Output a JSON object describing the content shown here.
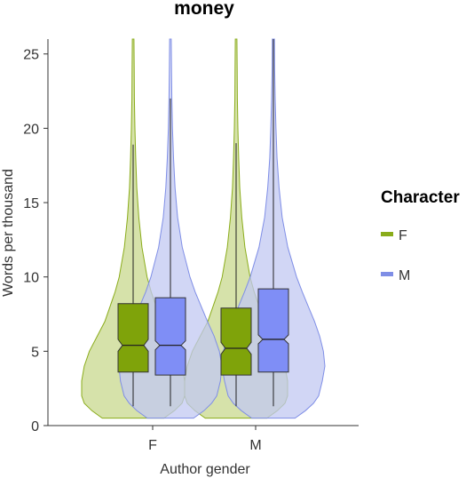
{
  "chart_data": {
    "type": "violin",
    "title": "money",
    "xlabel": "Author gender",
    "ylabel": "Words per thousand",
    "categories": [
      "F",
      "M"
    ],
    "ylim": [
      0,
      26
    ],
    "yticks": [
      "0",
      "5",
      "10",
      "15",
      "20",
      "25"
    ],
    "grid": false,
    "legend_title": "Character",
    "legend_position": "right",
    "series": [
      {
        "name": "F",
        "color": "#8aac1a",
        "fill": "#c8d88e",
        "box_fill": "#7fa30a",
        "groups": [
          {
            "category": "F",
            "min": 1.3,
            "q1": 3.6,
            "median": 5.4,
            "q3": 8.2,
            "whisker_high": 18.9,
            "notch_low": 5.0,
            "notch_high": 5.8,
            "data_min": 0.5,
            "data_max": 26,
            "profile": [
              [
                0.5,
                0.6
              ],
              [
                1,
                0.8
              ],
              [
                1.5,
                0.95
              ],
              [
                2,
                1.0
              ],
              [
                3,
                1.0
              ],
              [
                4,
                0.95
              ],
              [
                5,
                0.85
              ],
              [
                6,
                0.7
              ],
              [
                7,
                0.55
              ],
              [
                8,
                0.45
              ],
              [
                9,
                0.35
              ],
              [
                10,
                0.27
              ],
              [
                12,
                0.17
              ],
              [
                14,
                0.11
              ],
              [
                16,
                0.07
              ],
              [
                18,
                0.05
              ],
              [
                20,
                0.035
              ],
              [
                22,
                0.025
              ],
              [
                24,
                0.02
              ],
              [
                26,
                0.015
              ]
            ]
          },
          {
            "category": "M",
            "min": 1.3,
            "q1": 3.4,
            "median": 5.2,
            "q3": 7.9,
            "whisker_high": 19.0,
            "notch_low": 4.8,
            "notch_high": 5.6,
            "data_min": 0.5,
            "data_max": 26,
            "profile": [
              [
                0.5,
                0.6
              ],
              [
                1,
                0.8
              ],
              [
                1.5,
                0.95
              ],
              [
                2,
                1.0
              ],
              [
                3,
                1.0
              ],
              [
                4,
                0.95
              ],
              [
                5,
                0.85
              ],
              [
                6,
                0.7
              ],
              [
                7,
                0.55
              ],
              [
                8,
                0.45
              ],
              [
                9,
                0.35
              ],
              [
                10,
                0.27
              ],
              [
                12,
                0.17
              ],
              [
                14,
                0.11
              ],
              [
                16,
                0.07
              ],
              [
                18,
                0.05
              ],
              [
                20,
                0.035
              ],
              [
                22,
                0.025
              ],
              [
                24,
                0.02
              ],
              [
                26,
                0.015
              ]
            ]
          }
        ]
      },
      {
        "name": "M",
        "color": "#7f8ee6",
        "fill": "#c2c8f2",
        "box_fill": "#7f8ef6",
        "groups": [
          {
            "category": "F",
            "min": 1.3,
            "q1": 3.4,
            "median": 5.4,
            "q3": 8.6,
            "whisker_high": 22.0,
            "notch_low": 5.1,
            "notch_high": 5.7,
            "data_min": 0.5,
            "data_max": 26,
            "profile": [
              [
                0.5,
                0.45
              ],
              [
                1,
                0.65
              ],
              [
                1.5,
                0.8
              ],
              [
                2,
                0.9
              ],
              [
                3,
                0.97
              ],
              [
                4,
                1.0
              ],
              [
                5,
                0.95
              ],
              [
                6,
                0.85
              ],
              [
                7,
                0.72
              ],
              [
                8,
                0.6
              ],
              [
                9,
                0.48
              ],
              [
                10,
                0.38
              ],
              [
                12,
                0.23
              ],
              [
                14,
                0.14
              ],
              [
                16,
                0.09
              ],
              [
                18,
                0.06
              ],
              [
                20,
                0.04
              ],
              [
                22,
                0.028
              ],
              [
                24,
                0.02
              ],
              [
                26,
                0.015
              ]
            ]
          },
          {
            "category": "M",
            "min": 1.3,
            "q1": 3.6,
            "median": 5.8,
            "q3": 9.2,
            "whisker_high": 26,
            "notch_low": 5.5,
            "notch_high": 6.1,
            "data_min": 0.5,
            "data_max": 26,
            "profile": [
              [
                0.5,
                0.42
              ],
              [
                1,
                0.62
              ],
              [
                1.5,
                0.78
              ],
              [
                2,
                0.88
              ],
              [
                3,
                0.95
              ],
              [
                4,
                1.0
              ],
              [
                5,
                0.97
              ],
              [
                6,
                0.9
              ],
              [
                7,
                0.8
              ],
              [
                8,
                0.68
              ],
              [
                9,
                0.56
              ],
              [
                10,
                0.45
              ],
              [
                12,
                0.28
              ],
              [
                14,
                0.17
              ],
              [
                16,
                0.11
              ],
              [
                18,
                0.07
              ],
              [
                20,
                0.05
              ],
              [
                22,
                0.035
              ],
              [
                24,
                0.025
              ],
              [
                26,
                0.02
              ]
            ]
          }
        ]
      }
    ]
  }
}
